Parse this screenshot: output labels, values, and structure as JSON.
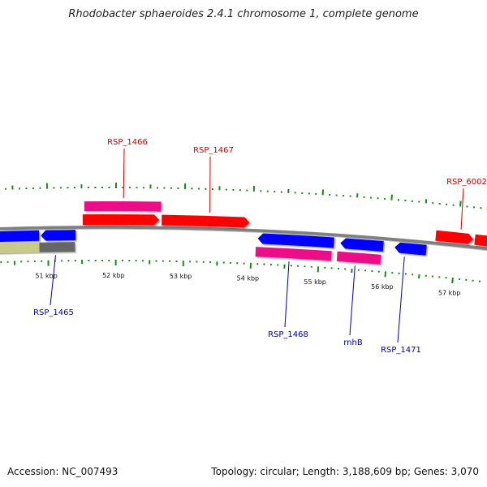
{
  "title": "Rhodobacter sphaeroides 2.4.1 chromosome 1, complete genome",
  "footer": {
    "accession": "Accession: NC_007493",
    "summary": "Topology: circular; Length: 3,188,609 bp; Genes: 3,070"
  },
  "colors": {
    "forward_cds": "#ff0000",
    "reverse_cds": "#0000ff",
    "gene": "#ee1188",
    "backbone": "#808080",
    "scale_ticks": "#1a8a1a",
    "label_forward": "#cc0000",
    "label_reverse": "#0000aa",
    "feature_olive": "#c9c98a",
    "feature_gray": "#666666"
  },
  "scale_labels": [
    "51 kbp",
    "52 kbp",
    "53 kbp",
    "54 kbp",
    "55 kbp",
    "56 kbp",
    "57 kbp"
  ],
  "gene_labels": [
    {
      "text": "RSP_1466",
      "strand": "forward"
    },
    {
      "text": "RSP_1467",
      "strand": "forward"
    },
    {
      "text": "RSP_6002",
      "strand": "forward"
    },
    {
      "text": "RSP_1465",
      "strand": "reverse"
    },
    {
      "text": "RSP_1468",
      "strand": "reverse"
    },
    {
      "text": "rnhB",
      "strand": "reverse"
    },
    {
      "text": "RSP_1471",
      "strand": "reverse"
    }
  ]
}
